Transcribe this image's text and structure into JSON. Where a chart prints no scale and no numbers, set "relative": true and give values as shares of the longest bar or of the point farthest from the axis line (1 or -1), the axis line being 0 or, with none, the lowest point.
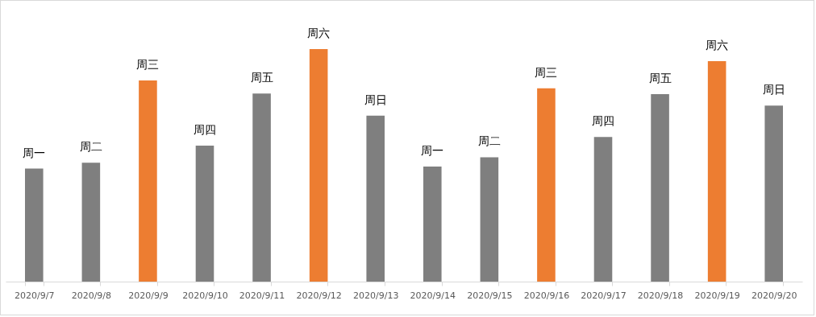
{
  "chart_data": {
    "type": "bar",
    "relative": true,
    "categories": [
      "2020/9/7",
      "2020/9/8",
      "2020/9/9",
      "2020/9/10",
      "2020/9/11",
      "2020/9/12",
      "2020/9/13",
      "2020/9/14",
      "2020/9/15",
      "2020/9/16",
      "2020/9/17",
      "2020/9/18",
      "2020/9/19",
      "2020/9/20"
    ],
    "values": [
      0.486,
      0.511,
      0.865,
      0.585,
      0.809,
      1,
      0.714,
      0.495,
      0.535,
      0.831,
      0.622,
      0.806,
      0.948,
      0.757
    ],
    "colors": [
      "#7f7f7f",
      "#7f7f7f",
      "#ed7d31",
      "#7f7f7f",
      "#7f7f7f",
      "#ed7d31",
      "#7f7f7f",
      "#7f7f7f",
      "#7f7f7f",
      "#ed7d31",
      "#7f7f7f",
      "#7f7f7f",
      "#ed7d31",
      "#7f7f7f"
    ],
    "annotations": [
      {
        "text": "周一",
        "x": "2020/9/7",
        "y": 0.486
      },
      {
        "text": "周二",
        "x": "2020/9/8",
        "y": 0.511
      },
      {
        "text": "周三",
        "x": "2020/9/9",
        "y": 0.865
      },
      {
        "text": "周四",
        "x": "2020/9/10",
        "y": 0.585
      },
      {
        "text": "周五",
        "x": "2020/9/11",
        "y": 0.809
      },
      {
        "text": "周六",
        "x": "2020/9/12",
        "y": 1
      },
      {
        "text": "周日",
        "x": "2020/9/13",
        "y": 0.714
      },
      {
        "text": "周一",
        "x": "2020/9/14",
        "y": 0.495
      },
      {
        "text": "周二",
        "x": "2020/9/15",
        "y": 0.535
      },
      {
        "text": "周三",
        "x": "2020/9/16",
        "y": 0.831
      },
      {
        "text": "周四",
        "x": "2020/9/17",
        "y": 0.622
      },
      {
        "text": "周五",
        "x": "2020/9/18",
        "y": 0.806
      },
      {
        "text": "周六",
        "x": "2020/9/19",
        "y": 0.948
      },
      {
        "text": "周日",
        "x": "2020/9/20",
        "y": 0.757
      }
    ]
  }
}
